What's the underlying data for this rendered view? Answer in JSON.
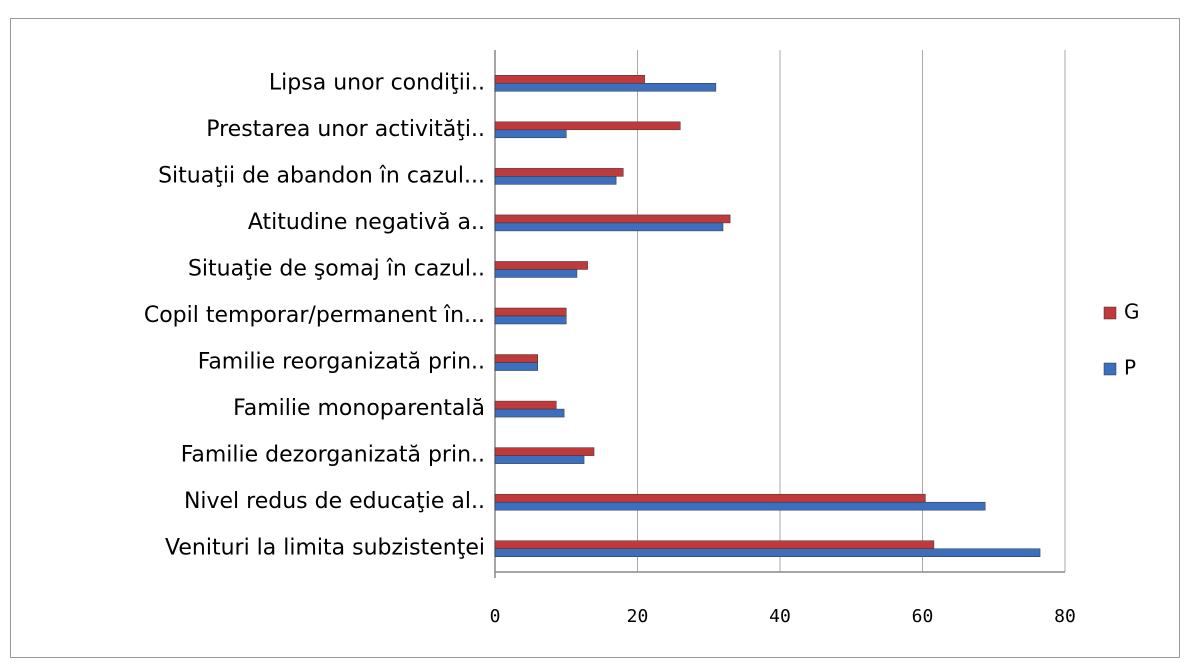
{
  "chart_data": {
    "type": "hbar",
    "categories": [
      "Lipsa unor condiţii..",
      "Prestarea unor activităţi..",
      "Situaţii de abandon în cazul...",
      "Atitudine negativă a..",
      "Situaţie de şomaj în cazul..",
      "Copil temporar/permanent în...",
      "Familie reorganizată prin..",
      "Familie monoparentală",
      "Familie dezorganizată prin..",
      "Nivel redus de educaţie al..",
      "Venituri la limita subzistenţei"
    ],
    "series": [
      {
        "name": "G",
        "color": "#c0393b",
        "values": [
          21,
          26,
          18,
          33,
          13,
          10,
          6,
          8.6,
          13.9,
          60.4,
          61.6
        ]
      },
      {
        "name": "P",
        "color": "#3d6fbf",
        "values": [
          31,
          10,
          17,
          32,
          11.5,
          10,
          6,
          9.7,
          12.5,
          68.8,
          76.5
        ]
      }
    ],
    "xlim": [
      0,
      80
    ],
    "xticks": [
      0,
      20,
      40,
      60,
      80
    ],
    "grid": true,
    "legend": "right"
  }
}
